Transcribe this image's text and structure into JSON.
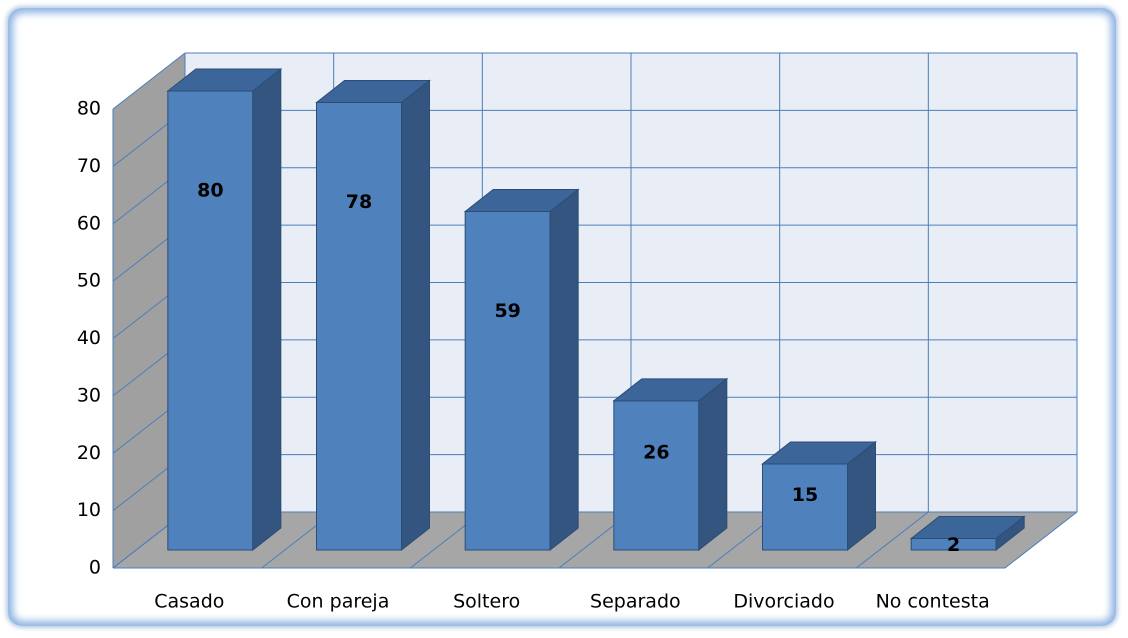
{
  "chart_data": {
    "type": "bar3d",
    "categories": [
      "Casado",
      "Con pareja",
      "Soltero",
      "Separado",
      "Divorciado",
      "No contesta"
    ],
    "values": [
      80,
      78,
      59,
      26,
      15,
      2
    ],
    "color": "#4f81bd",
    "ylim": [
      0,
      80
    ],
    "yticks": [
      0,
      10,
      20,
      30,
      40,
      50,
      60,
      70,
      80
    ],
    "grid": true
  }
}
